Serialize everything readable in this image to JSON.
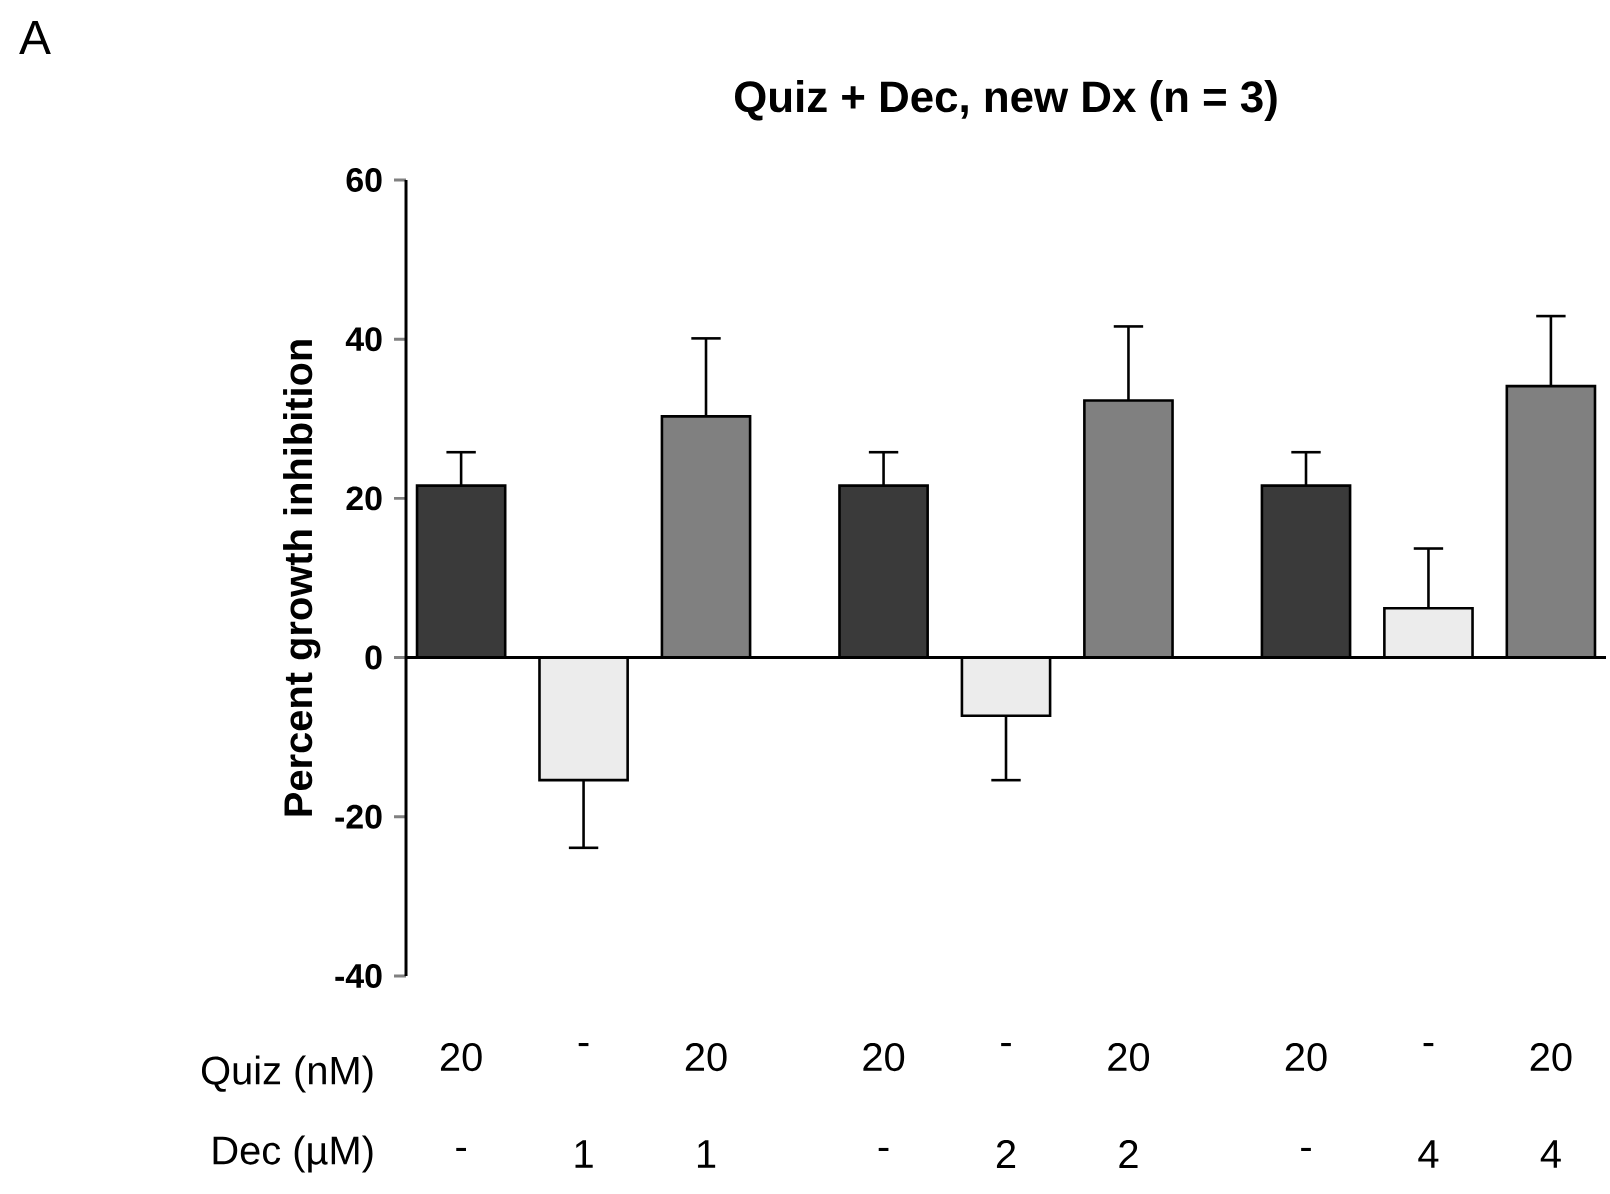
{
  "chart_data": {
    "type": "bar",
    "title": "Quiz + Dec, new Dx (n = 3)",
    "ylabel": "Percent growth inhibition",
    "categories": [
      "20",
      "-",
      "20",
      "20",
      "-",
      "20",
      "20",
      "-",
      "20"
    ],
    "values": [
      21.6,
      -15.4,
      30.3,
      21.6,
      -7.3,
      32.3,
      21.6,
      6.2,
      34.1
    ],
    "errors": [
      [
        21.6,
        25.8
      ],
      [
        -23.9,
        -15.4
      ],
      [
        30.3,
        40.1
      ],
      [
        21.6,
        25.8
      ],
      [
        -15.4,
        -7.3
      ],
      [
        32.3,
        41.6
      ],
      [
        21.6,
        25.8
      ],
      [
        6.2,
        13.7
      ],
      [
        34.1,
        42.9
      ]
    ],
    "colors": [
      "#3a3a3a",
      "#ececec",
      "#808080",
      "#3a3a3a",
      "#ececec",
      "#808080",
      "#3a3a3a",
      "#ececec",
      "#808080"
    ],
    "ylim": [
      -40,
      60
    ],
    "yticks": [
      -40,
      -20,
      0,
      20,
      40,
      60
    ],
    "annotations": [
      "A",
      "Quiz (nM)",
      "Dec (µM)",
      "-",
      "1",
      "1",
      "-",
      "2",
      "2",
      "-",
      "4",
      "4"
    ]
  }
}
